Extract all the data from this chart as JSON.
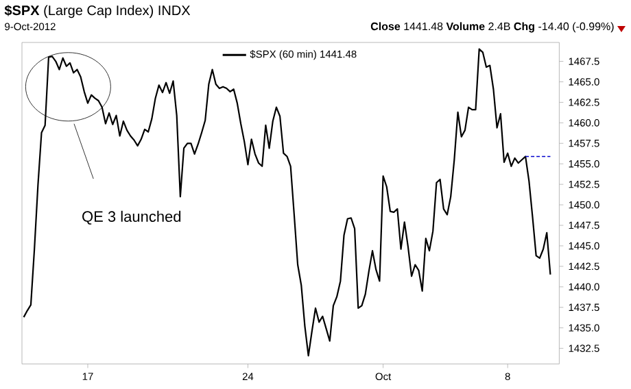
{
  "chart_data": {
    "type": "line",
    "title": "**$SPX** (Large Cap Index) INDX",
    "subtitle": "9-Oct-2012",
    "annotations": [
      "**Close** 1441.48 **Volume** 2.4B **Chg** -14.40 (-0.99%)",
      "QE 3 launched"
    ],
    "categories": [
      null,
      null,
      null,
      null,
      null,
      null,
      null,
      null,
      null,
      null,
      null,
      null,
      null,
      null,
      null,
      null,
      null,
      null,
      "17",
      null,
      null,
      null,
      null,
      null,
      null,
      null,
      null,
      null,
      null,
      null,
      null,
      null,
      null,
      null,
      null,
      null,
      null,
      null,
      null,
      null,
      null,
      null,
      null,
      null,
      null,
      null,
      null,
      null,
      null,
      null,
      null,
      null,
      null,
      null,
      null,
      null,
      null,
      null,
      null,
      null,
      null,
      null,
      null,
      "24",
      null,
      null,
      null,
      null,
      null,
      null,
      null,
      null,
      null,
      null,
      null,
      null,
      null,
      null,
      null,
      null,
      null,
      null,
      null,
      null,
      null,
      null,
      null,
      null,
      null,
      null,
      null,
      null,
      null,
      null,
      null,
      null,
      null,
      null,
      null,
      null,
      null,
      "Oct",
      null,
      null,
      null,
      null,
      null,
      null,
      null,
      null,
      null,
      null,
      null,
      null,
      null,
      null,
      null,
      null,
      null,
      null,
      null,
      null,
      null,
      null,
      null,
      null,
      null,
      null,
      null,
      null,
      null,
      null,
      null,
      null,
      null,
      null,
      "8",
      null,
      null,
      null,
      null,
      null,
      null,
      null,
      null,
      null,
      null,
      null,
      null
    ],
    "ylim": [
      1430.6,
      1469.8
    ],
    "yticks": [
      {
        "value": 1432.5,
        "label": "1432.5"
      },
      {
        "value": 1435,
        "label": "1435.0"
      },
      {
        "value": 1437.5,
        "label": "1437.5"
      },
      {
        "value": 1440,
        "label": "1440.0"
      },
      {
        "value": 1442.5,
        "label": "1442.5"
      },
      {
        "value": 1445,
        "label": "1445.0"
      },
      {
        "value": 1447.5,
        "label": "1447.5"
      },
      {
        "value": 1450,
        "label": "1450.0"
      },
      {
        "value": 1452.5,
        "label": "1452.5"
      },
      {
        "value": 1455,
        "label": "1455.0"
      },
      {
        "value": 1457.5,
        "label": "1457.5"
      },
      {
        "value": 1460,
        "label": "1460.0"
      },
      {
        "value": 1462.5,
        "label": "1462.5"
      },
      {
        "value": 1465,
        "label": "1465.0"
      },
      {
        "value": 1467.5,
        "label": "1467.5"
      }
    ],
    "legend": "top",
    "series": [
      {
        "name": "$SPX (60 min) 1441.48",
        "color": "#000000",
        "values": [
          1436.3,
          1437.1,
          1437.8,
          1444.6,
          1452.4,
          1458.8,
          1459.7,
          1468.0,
          1468.1,
          1467.5,
          1466.5,
          1467.9,
          1466.9,
          1467.3,
          1466.1,
          1466.5,
          1465.6,
          1463.8,
          1462.4,
          1463.4,
          1463.0,
          1462.7,
          1461.9,
          1459.9,
          1461.2,
          1459.8,
          1460.9,
          1458.4,
          1460.2,
          1459.1,
          1458.4,
          1457.9,
          1457.2,
          1458.0,
          1459.2,
          1458.9,
          1460.5,
          1463.0,
          1464.6,
          1463.7,
          1464.9,
          1463.6,
          1465.1,
          1460.9,
          1451.0,
          1456.9,
          1457.5,
          1457.5,
          1456.2,
          1457.4,
          1458.8,
          1460.3,
          1464.7,
          1466.5,
          1464.7,
          1464.2,
          1464.4,
          1464.2,
          1463.8,
          1464.1,
          1462.4,
          1459.9,
          1457.7,
          1454.9,
          1458.0,
          1456.2,
          1455.1,
          1454.7,
          1459.7,
          1456.9,
          1460.2,
          1461.9,
          1460.8,
          1456.3,
          1455.9,
          1454.7,
          1448.8,
          1442.7,
          1440.2,
          1435.2,
          1431.6,
          1434.6,
          1437.4,
          1435.7,
          1436.4,
          1434.9,
          1433.4,
          1437.7,
          1438.8,
          1440.7,
          1446.3,
          1448.3,
          1448.4,
          1447.1,
          1437.4,
          1437.7,
          1439.1,
          1441.9,
          1444.4,
          1442.1,
          1440.7,
          1453.5,
          1452.2,
          1449.2,
          1449.1,
          1449.5,
          1444.6,
          1447.9,
          1444.9,
          1441.3,
          1442.7,
          1442.0,
          1439.5,
          1445.9,
          1444.4,
          1446.8,
          1452.7,
          1453.1,
          1449.5,
          1448.8,
          1451.0,
          1455.5,
          1461.3,
          1458.3,
          1459.1,
          1461.9,
          1461.6,
          1461.6,
          1469.0,
          1468.6,
          1466.8,
          1467.0,
          1464.1,
          1459.4,
          1461.1,
          1455.2,
          1456.3,
          1454.7,
          1455.7,
          1455.1,
          1455.5,
          1455.9,
          1452.9,
          1448.5,
          1443.8,
          1443.5,
          1444.6,
          1446.6,
          1441.5
        ]
      },
      {
        "color": "#0000cc",
        "line_style": "dashed",
        "values": [
          null,
          null,
          null,
          null,
          null,
          null,
          null,
          null,
          null,
          null,
          null,
          null,
          null,
          null,
          null,
          null,
          null,
          null,
          null,
          null,
          null,
          null,
          null,
          null,
          null,
          null,
          null,
          null,
          null,
          null,
          null,
          null,
          null,
          null,
          null,
          null,
          null,
          null,
          null,
          null,
          null,
          null,
          null,
          null,
          null,
          null,
          null,
          null,
          null,
          null,
          null,
          null,
          null,
          null,
          null,
          null,
          null,
          null,
          null,
          null,
          null,
          null,
          null,
          null,
          null,
          null,
          null,
          null,
          null,
          null,
          null,
          null,
          null,
          null,
          null,
          null,
          null,
          null,
          null,
          null,
          null,
          null,
          null,
          null,
          null,
          null,
          null,
          null,
          null,
          null,
          null,
          null,
          null,
          null,
          null,
          null,
          null,
          null,
          null,
          null,
          null,
          null,
          null,
          null,
          null,
          null,
          null,
          null,
          null,
          null,
          null,
          null,
          null,
          null,
          null,
          null,
          null,
          null,
          null,
          null,
          null,
          null,
          null,
          null,
          null,
          null,
          null,
          null,
          null,
          null,
          null,
          null,
          null,
          null,
          null,
          null,
          null,
          null,
          null,
          null,
          null,
          1455.9,
          1455.9,
          1455.9,
          1455.9,
          1455.9,
          1455.9,
          1455.9,
          1455.9
        ]
      }
    ]
  }
}
